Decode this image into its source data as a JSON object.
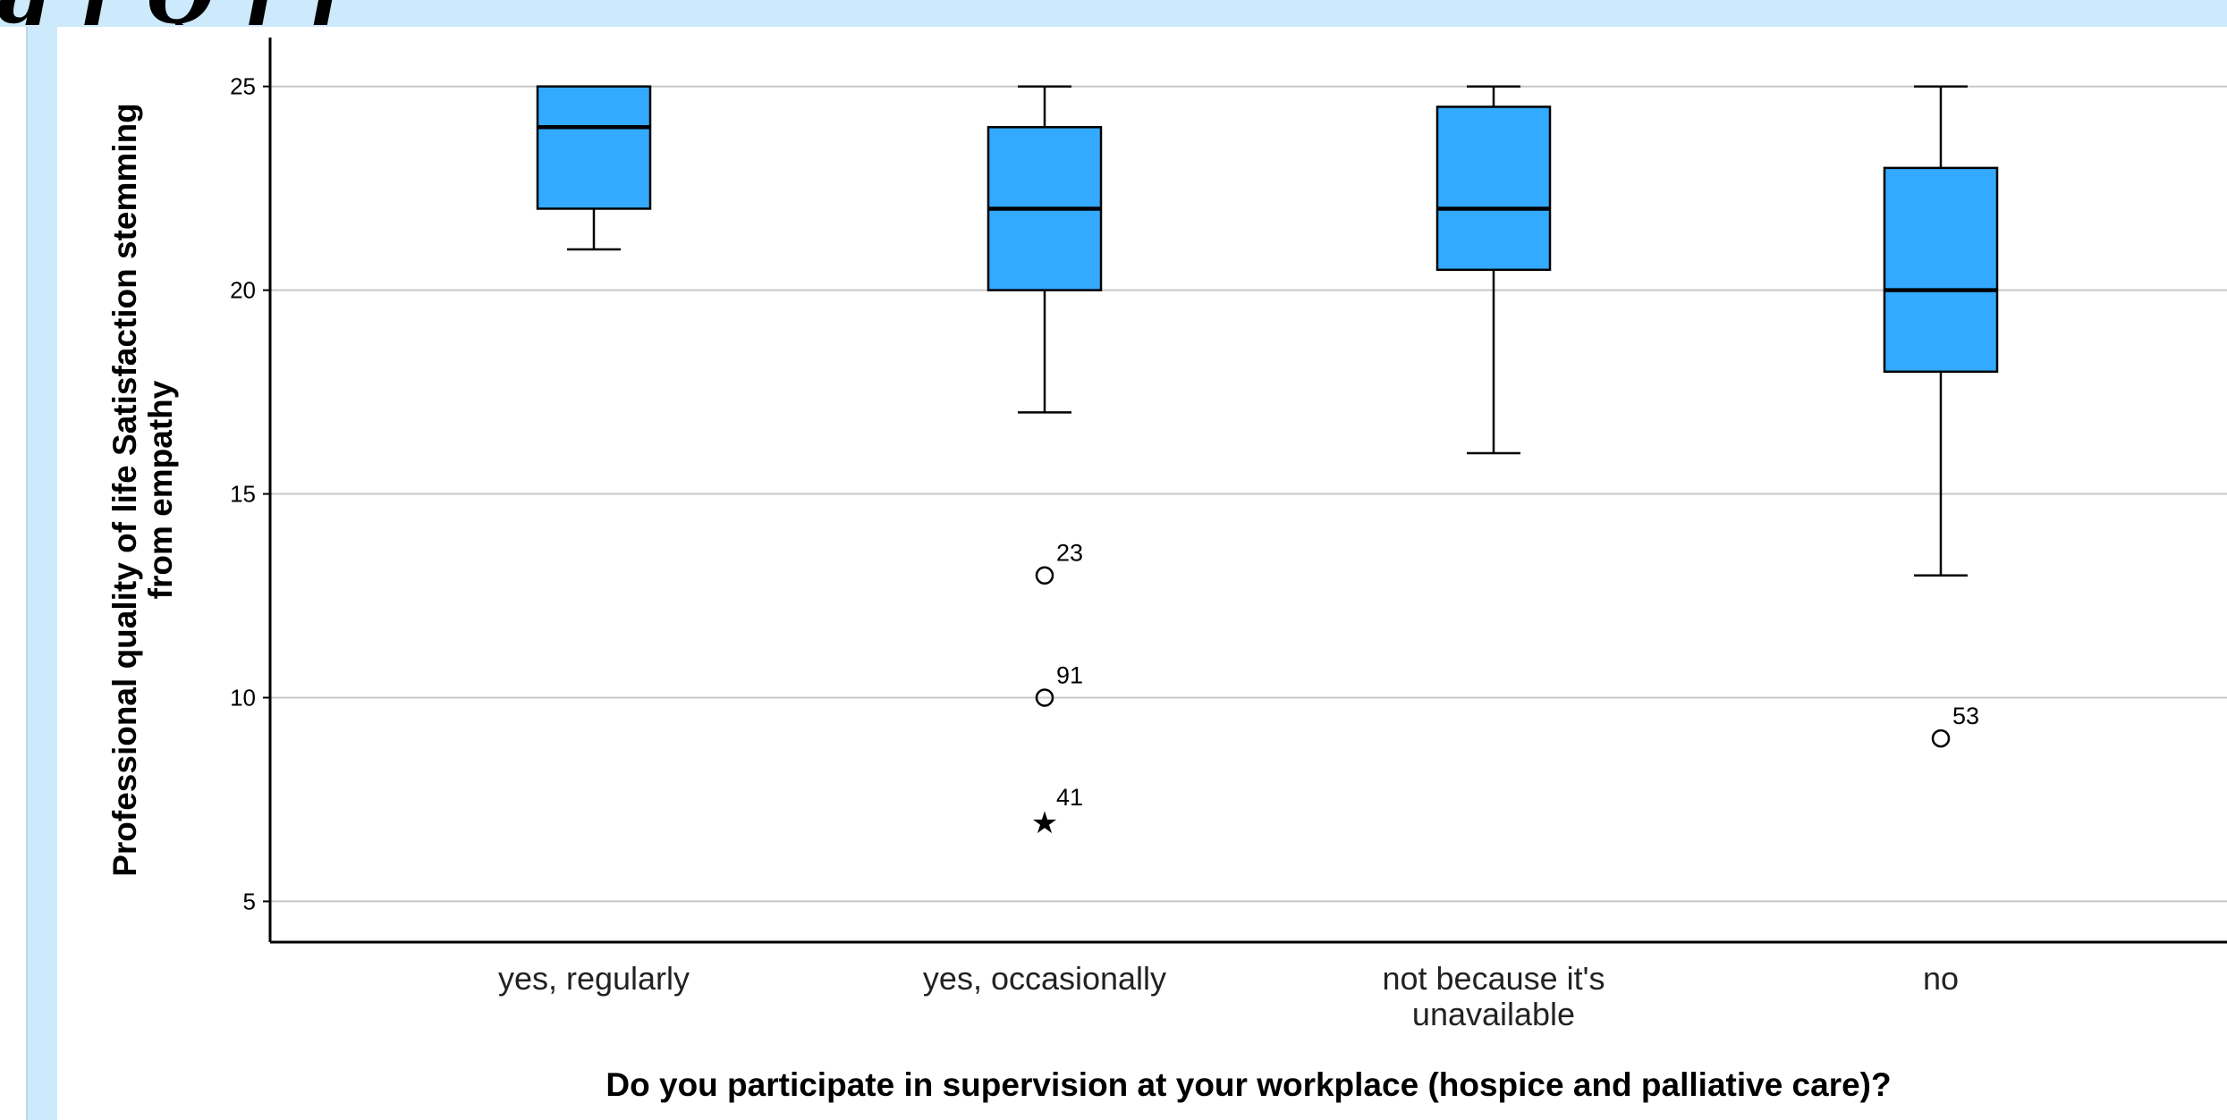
{
  "banner": {
    "text": "g   f                     Q    f   f"
  },
  "chart_data": {
    "type": "boxplot",
    "title": "",
    "xlabel": "Do you participate in supervision at your workplace (hospice and palliative care)?",
    "ylabel_lines": [
      "Professional quality of life Satisfaction stemming",
      "from empathy"
    ],
    "ylim": [
      4,
      26.2
    ],
    "yticks": [
      5,
      10,
      15,
      20,
      25
    ],
    "grid": true,
    "box_color": "#33aaff",
    "categories": [
      {
        "label_lines": [
          "yes, regularly"
        ],
        "whisker_low": 21,
        "q1": 22,
        "median": 24,
        "q3": 25,
        "whisker_high": 25,
        "outliers": []
      },
      {
        "label_lines": [
          "yes, occasionally"
        ],
        "whisker_low": 17,
        "q1": 20,
        "median": 22,
        "q3": 24,
        "whisker_high": 25,
        "outliers": [
          {
            "value": 13,
            "label": "23",
            "kind": "circle"
          },
          {
            "value": 10,
            "label": "91",
            "kind": "circle"
          },
          {
            "value": 7,
            "label": "41",
            "kind": "star"
          }
        ]
      },
      {
        "label_lines": [
          "not because it's",
          "unavailable"
        ],
        "whisker_low": 16,
        "q1": 20.5,
        "median": 22,
        "q3": 24.5,
        "whisker_high": 25,
        "outliers": []
      },
      {
        "label_lines": [
          "no"
        ],
        "whisker_low": 13,
        "q1": 18,
        "median": 20,
        "q3": 23,
        "whisker_high": 25,
        "outliers": [
          {
            "value": 9,
            "label": "53",
            "kind": "circle"
          }
        ]
      }
    ]
  }
}
